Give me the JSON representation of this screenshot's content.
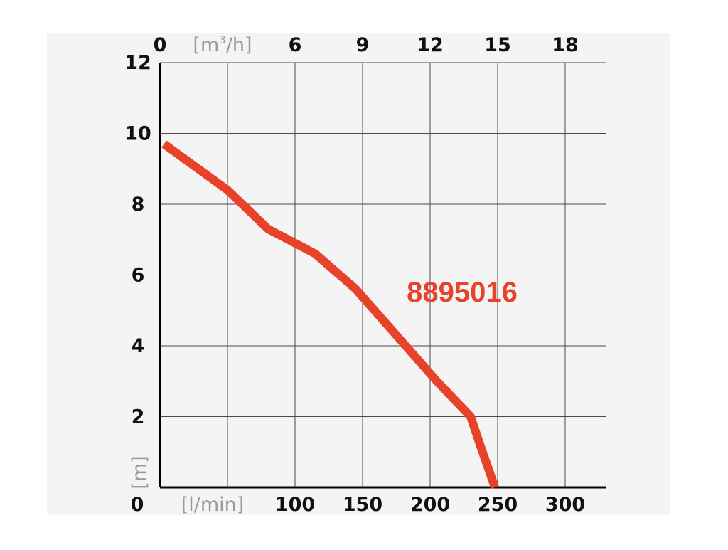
{
  "chart_data": {
    "type": "line",
    "background_color": "#f4f4f4",
    "curve_color": "#e8422a",
    "grid": true,
    "x_bottom": {
      "label": "[l/min]",
      "ticks": [
        0,
        50,
        100,
        150,
        200,
        250,
        300
      ],
      "tick_labels": [
        "0",
        "",
        "100",
        "150",
        "200",
        "250",
        "300"
      ],
      "range": [
        0,
        330
      ]
    },
    "x_top": {
      "label_pre": "[m",
      "label_sup": "3",
      "label_post": "/h]",
      "ticks": [
        0,
        3,
        6,
        9,
        12,
        15,
        18
      ],
      "tick_labels": [
        "0",
        "",
        "6",
        "9",
        "12",
        "15",
        "18"
      ],
      "range": [
        0,
        19.8
      ]
    },
    "y": {
      "label": "[m]",
      "ticks": [
        0,
        2,
        4,
        6,
        8,
        10,
        12
      ],
      "tick_labels": [
        "",
        "2",
        "4",
        "6",
        "8",
        "10",
        "12"
      ],
      "range": [
        0,
        12
      ]
    },
    "origin_label": "0",
    "series": [
      {
        "name": "8895016",
        "x": [
          3,
          50,
          80,
          115,
          145,
          175,
          205,
          230,
          237,
          248
        ],
        "y": [
          9.7,
          8.4,
          7.3,
          6.6,
          5.6,
          4.3,
          3.0,
          2.0,
          1.2,
          0
        ]
      }
    ],
    "annotation": "8895016"
  }
}
